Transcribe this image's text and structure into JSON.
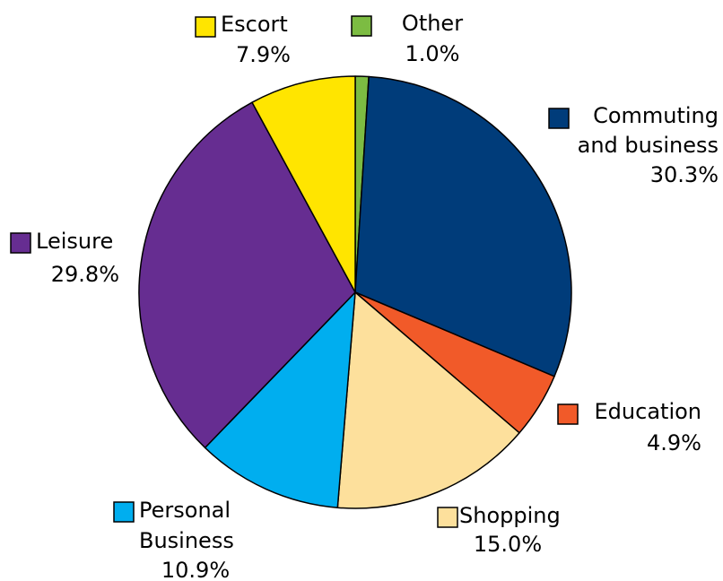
{
  "chart_data": {
    "type": "pie",
    "title": "",
    "slices": [
      {
        "name": "Other",
        "value": 1.0,
        "label": "1.0%",
        "color": "#7cbc42"
      },
      {
        "name": "Commuting and business",
        "name_lines": [
          "Commuting",
          "and business"
        ],
        "value": 30.3,
        "label": "30.3%",
        "color": "#003c7a"
      },
      {
        "name": "Education",
        "value": 4.9,
        "label": "4.9%",
        "color": "#f15a29"
      },
      {
        "name": "Shopping",
        "value": 15.0,
        "label": "15.0%",
        "color": "#fde09c"
      },
      {
        "name": "Personal Business",
        "name_lines": [
          "Personal",
          "Business"
        ],
        "value": 10.9,
        "label": "10.9%",
        "color": "#00aeef"
      },
      {
        "name": "Leisure",
        "value": 29.8,
        "label": "29.8%",
        "color": "#662d91"
      },
      {
        "name": "Escort",
        "value": 7.9,
        "label": "7.9%",
        "color": "#ffe500"
      }
    ],
    "start_angle": "12 o'clock",
    "direction": "clockwise",
    "legend": "labels beside slices with color swatches"
  }
}
